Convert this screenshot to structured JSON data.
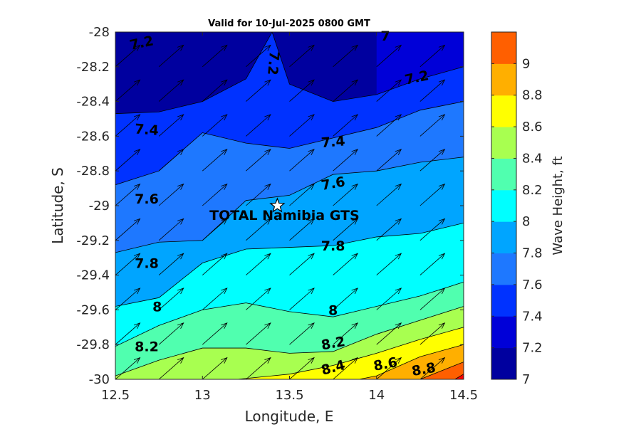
{
  "chart_data": {
    "type": "heatmap",
    "subtype": "filled-contour-with-wind-vectors",
    "title": "Valid for 10-Jul-2025 0800 GMT",
    "xlabel": "Longitude, E",
    "ylabel": "Latitude, S",
    "xlim": [
      12.5,
      14.5
    ],
    "ylim": [
      -30,
      -28
    ],
    "xticks": [
      "12.5",
      "13",
      "13.5",
      "14",
      "14.5"
    ],
    "yticks": [
      "-28",
      "-28.2",
      "-28.4",
      "-28.6",
      "-28.8",
      "-29",
      "-29.2",
      "-29.4",
      "-29.6",
      "-29.8",
      "-30"
    ],
    "colorbar": {
      "label": "Wave Height, ft",
      "ticks": [
        "7",
        "7.2",
        "7.4",
        "7.6",
        "7.8",
        "8",
        "8.2",
        "8.4",
        "8.6",
        "8.8",
        "9"
      ],
      "levels": [
        7.0,
        7.2,
        7.4,
        7.6,
        7.8,
        8.0,
        8.2,
        8.4,
        8.6,
        8.8,
        9.0,
        9.2
      ],
      "colors": [
        "#00009f",
        "#0000d8",
        "#0032ff",
        "#1e78ff",
        "#00a5ff",
        "#00ffff",
        "#50ffaf",
        "#a8ff50",
        "#ffff00",
        "#ffaf00",
        "#ff5f00",
        "#ff0000"
      ]
    },
    "contours": [
      {
        "level": 7.0,
        "x": [
          14.0,
          14.5
        ],
        "y": [
          -28.0,
          -28.0
        ]
      },
      {
        "level": 7.2,
        "x": [
          12.5,
          12.75,
          13.0,
          13.25,
          13.4,
          13.5,
          13.75,
          14.0,
          14.25,
          14.5
        ],
        "y": [
          -28.47,
          -28.46,
          -28.4,
          -28.27,
          -28.0,
          -28.3,
          -28.4,
          -28.36,
          -28.27,
          -28.2
        ]
      },
      {
        "level": 7.4,
        "x": [
          12.5,
          12.75,
          13.0,
          13.25,
          13.5,
          13.75,
          14.0,
          14.25,
          14.5
        ],
        "y": [
          -28.88,
          -28.8,
          -28.58,
          -28.64,
          -28.67,
          -28.61,
          -28.55,
          -28.45,
          -28.4
        ]
      },
      {
        "level": 7.6,
        "x": [
          12.5,
          12.75,
          13.0,
          13.25,
          13.5,
          13.75,
          14.0,
          14.25,
          14.5
        ],
        "y": [
          -29.27,
          -29.21,
          -29.2,
          -28.97,
          -28.94,
          -28.82,
          -28.8,
          -28.75,
          -28.72
        ]
      },
      {
        "level": 7.8,
        "x": [
          12.5,
          12.75,
          13.0,
          13.25,
          13.5,
          13.75,
          14.0,
          14.25,
          14.5
        ],
        "y": [
          -29.58,
          -29.53,
          -29.33,
          -29.25,
          -29.24,
          -29.23,
          -29.18,
          -29.16,
          -29.1
        ]
      },
      {
        "level": 8.0,
        "x": [
          12.5,
          12.75,
          13.0,
          13.25,
          13.5,
          13.75,
          14.0,
          14.25,
          14.5
        ],
        "y": [
          -29.81,
          -29.69,
          -29.6,
          -29.56,
          -29.61,
          -29.64,
          -29.58,
          -29.52,
          -29.44
        ]
      },
      {
        "level": 8.2,
        "x": [
          12.5,
          12.75,
          13.0,
          13.25,
          13.5,
          13.75,
          14.0,
          14.25,
          14.5
        ],
        "y": [
          -29.98,
          -29.89,
          -29.82,
          -29.82,
          -29.85,
          -29.84,
          -29.74,
          -29.66,
          -29.58
        ]
      },
      {
        "level": 8.4,
        "x": [
          13.2,
          13.5,
          13.75,
          14.0,
          14.25,
          14.5
        ],
        "y": [
          -30.0,
          -29.97,
          -29.92,
          -29.85,
          -29.77,
          -29.7
        ]
      },
      {
        "level": 8.6,
        "x": [
          13.9,
          14.0,
          14.25,
          14.5
        ],
        "y": [
          -30.0,
          -29.98,
          -29.87,
          -29.8
        ]
      },
      {
        "level": 8.8,
        "x": [
          14.25,
          14.5
        ],
        "y": [
          -30.0,
          -29.9
        ]
      },
      {
        "level": 9.0,
        "x": [
          14.45,
          14.5
        ],
        "y": [
          -30.0,
          -29.97
        ]
      }
    ],
    "contour_labels": [
      {
        "text": "7.2",
        "x": 12.65,
        "y": -28.06,
        "rot": -12
      },
      {
        "text": "7",
        "x": 14.05,
        "y": -28.02,
        "rot": 0
      },
      {
        "text": "7.2",
        "x": 13.41,
        "y": -28.18,
        "rot": 95
      },
      {
        "text": "7.2",
        "x": 14.23,
        "y": -28.26,
        "rot": -12
      },
      {
        "text": "7.4",
        "x": 12.68,
        "y": -28.56,
        "rot": 4
      },
      {
        "text": "7.4",
        "x": 13.75,
        "y": -28.63,
        "rot": -5
      },
      {
        "text": "7.6",
        "x": 13.75,
        "y": -28.87,
        "rot": -10
      },
      {
        "text": "7.6",
        "x": 12.68,
        "y": -28.96,
        "rot": 0
      },
      {
        "text": "7.8",
        "x": 13.75,
        "y": -29.23,
        "rot": 0
      },
      {
        "text": "7.8",
        "x": 12.68,
        "y": -29.33,
        "rot": 0
      },
      {
        "text": "8",
        "x": 12.74,
        "y": -29.58,
        "rot": 0
      },
      {
        "text": "8",
        "x": 13.75,
        "y": -29.6,
        "rot": 0
      },
      {
        "text": "8.2",
        "x": 12.68,
        "y": -29.81,
        "rot": 0
      },
      {
        "text": "8.2",
        "x": 13.75,
        "y": -29.79,
        "rot": -10
      },
      {
        "text": "8.4",
        "x": 13.75,
        "y": -29.93,
        "rot": -15
      },
      {
        "text": "8.6",
        "x": 14.05,
        "y": -29.91,
        "rot": -10
      },
      {
        "text": "8.8",
        "x": 14.27,
        "y": -29.94,
        "rot": -10
      }
    ],
    "vectors": {
      "direction": "toward north-east",
      "x": [
        12.5,
        12.75,
        13.0,
        13.25,
        13.5,
        13.75,
        14.0,
        14.25,
        14.5
      ],
      "y": [
        -28.0,
        -28.2,
        -28.4,
        -28.6,
        -28.8,
        -29.0,
        -29.2,
        -29.4,
        -29.6,
        -29.8,
        -30.0
      ],
      "u": 0.75,
      "v": 0.66
    },
    "site": {
      "name": "TOTAL Namibia GTS",
      "x": 13.43,
      "y": -29.0,
      "marker": "star"
    }
  }
}
